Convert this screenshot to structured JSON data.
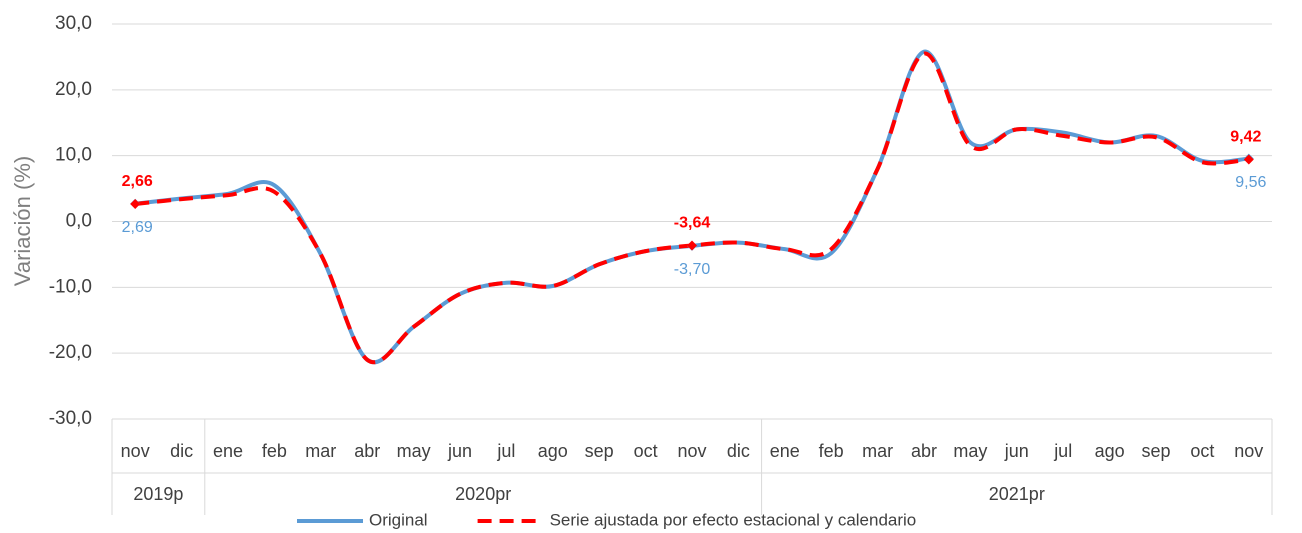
{
  "chart_data": {
    "type": "line",
    "y_label": "Variación (%)",
    "categories": [
      "nov",
      "dic",
      "ene",
      "feb",
      "mar",
      "abr",
      "may",
      "jun",
      "jul",
      "ago",
      "sep",
      "oct",
      "nov",
      "dic",
      "ene",
      "feb",
      "mar",
      "abr",
      "may",
      "jun",
      "jul",
      "ago",
      "sep",
      "oct",
      "nov"
    ],
    "groups": [
      {
        "name": "2019p",
        "count": 2
      },
      {
        "name": "2020pr",
        "count": 12
      },
      {
        "name": "2021pr",
        "count": 11
      }
    ],
    "series": [
      {
        "name": "Original",
        "color": "#5b9bd5",
        "dashed": false,
        "values": [
          2.69,
          3.5,
          4.2,
          5.5,
          -5,
          -21,
          -16,
          -11,
          -9.3,
          -9.8,
          -6.5,
          -4.5,
          -3.7,
          -3.2,
          -4.2,
          -4.8,
          8,
          25.8,
          12,
          14,
          13.5,
          12,
          13,
          9.2,
          9.56
        ],
        "value_labels": [
          "2,69",
          null,
          null,
          null,
          null,
          null,
          null,
          null,
          null,
          null,
          null,
          null,
          "-3,70",
          null,
          null,
          null,
          null,
          null,
          null,
          null,
          null,
          null,
          null,
          null,
          "9,56"
        ]
      },
      {
        "name": "Serie ajustada por efecto estacional y calendario",
        "color": "#ff0000",
        "dashed": true,
        "values": [
          2.66,
          3.4,
          4.0,
          4.5,
          -5,
          -21,
          -16,
          -11,
          -9.3,
          -9.8,
          -6.5,
          -4.5,
          -3.64,
          -3.2,
          -4.2,
          -4.2,
          8,
          25.5,
          11.5,
          14,
          13,
          12,
          12.8,
          9,
          9.42
        ],
        "value_labels": [
          "2,66",
          null,
          null,
          null,
          null,
          null,
          null,
          null,
          null,
          null,
          null,
          null,
          "-3,64",
          null,
          null,
          null,
          null,
          null,
          null,
          null,
          null,
          null,
          null,
          null,
          "9,42"
        ]
      }
    ],
    "ylim": [
      -30,
      30
    ],
    "yticks": [
      {
        "value": -30,
        "label": "-30,0"
      },
      {
        "value": -20,
        "label": "-20,0"
      },
      {
        "value": -10,
        "label": "-10,0"
      },
      {
        "value": 0,
        "label": "0,0"
      },
      {
        "value": 10,
        "label": "10,0"
      },
      {
        "value": 20,
        "label": "20,0"
      },
      {
        "value": 30,
        "label": "30,0"
      }
    ],
    "grid": true,
    "legend": "bottom"
  }
}
